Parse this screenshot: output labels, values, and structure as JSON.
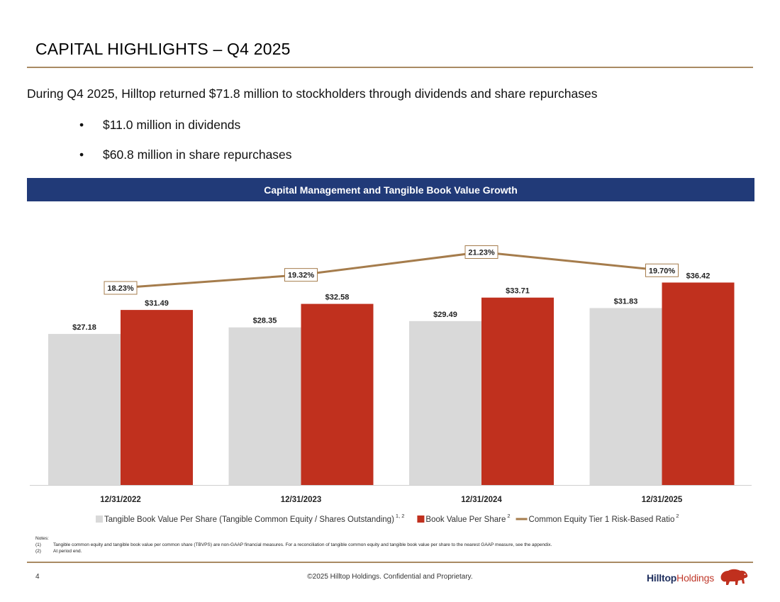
{
  "header": {
    "title": "CAPITAL HIGHLIGHTS – Q4 2025"
  },
  "summary": {
    "intro": "During Q4 2025, Hilltop returned $71.8 million to stockholders through dividends and share repurchases",
    "bullet_symbol": "•",
    "bullets": [
      "$11.0 million in dividends",
      "$60.8 million in share repurchases"
    ]
  },
  "chart_header": "Capital Management and Tangible Book Value Growth",
  "chart_data": {
    "type": "bar",
    "title": "Capital Management and Tangible Book Value Growth",
    "categories": [
      "12/31/2022",
      "12/31/2023",
      "12/31/2024",
      "12/31/2025"
    ],
    "series": [
      {
        "name": "Tangible Book Value Per Share (Tangible Common Equity / Shares Outstanding)",
        "superscript": "1, 2",
        "kind": "bar",
        "color": "#d9d9d9",
        "values": [
          27.18,
          28.35,
          29.49,
          31.83
        ],
        "labels": [
          "$27.18",
          "$28.35",
          "$29.49",
          "$31.83"
        ]
      },
      {
        "name": "Book Value Per Share",
        "superscript": "2",
        "kind": "bar",
        "color": "#c0301e",
        "values": [
          31.49,
          32.58,
          33.71,
          36.42
        ],
        "labels": [
          "$31.49",
          "$32.58",
          "$33.71",
          "$36.42"
        ]
      },
      {
        "name": "Common Equity Tier 1 Risk-Based Ratio",
        "superscript": "2",
        "kind": "line",
        "color": "#a57c4c",
        "values": [
          18.23,
          19.32,
          21.23,
          19.7
        ],
        "labels": [
          "18.23%",
          "19.32%",
          "21.23%",
          "19.70%"
        ]
      }
    ],
    "ylim_bars": [
      0,
      37.5
    ],
    "ylim_line": [
      0,
      21.2
    ],
    "legend_position": "bottom",
    "grid": false
  },
  "notes": {
    "heading": "Notes:",
    "items": [
      {
        "num": "(1)",
        "text": "Tangible common equity and tangible book value per common share (TBVPS) are non-GAAP financial measures. For a reconciliation of tangible common equity and tangible book value per share to the nearest GAAP measure, see the appendix."
      },
      {
        "num": "(2)",
        "text": "At period end."
      }
    ]
  },
  "footer": {
    "page_number": "4",
    "copyright": "©2025 Hilltop Holdings. Confidential and Proprietary.",
    "logo_text_a": "Hilltop",
    "logo_text_b": "Holdings"
  }
}
